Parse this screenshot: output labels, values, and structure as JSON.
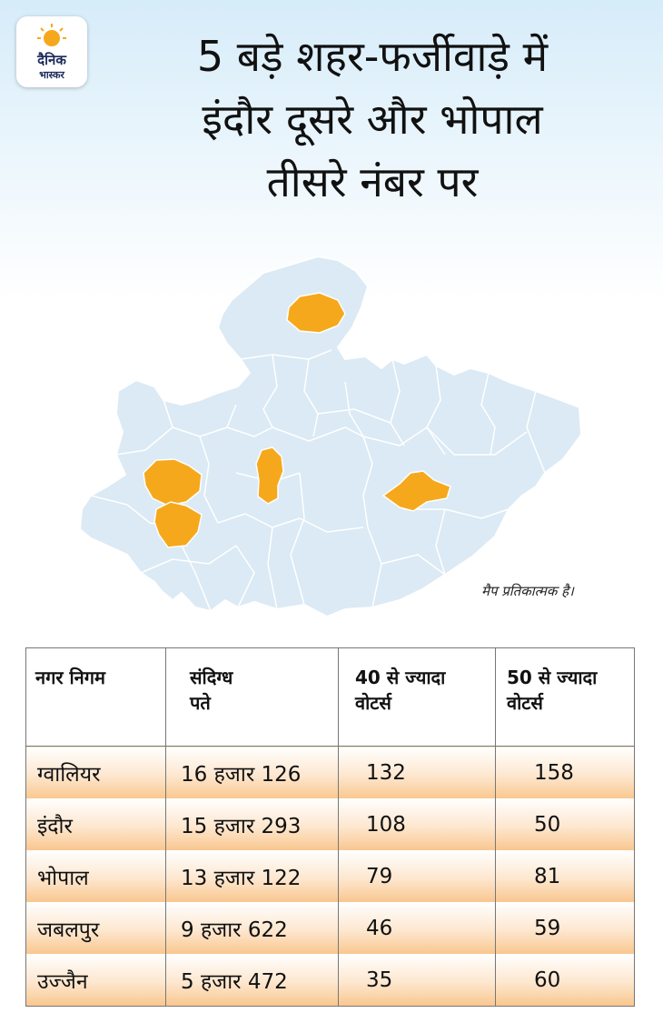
{
  "logo": {
    "line1": "दैनिक",
    "line2": "भास्कर"
  },
  "title": {
    "line1": "5 बड़े शहर-फर्जीवाड़े में",
    "line2": "इंदौर दूसरे और भोपाल",
    "line3": "तीसरे नंबर पर"
  },
  "map": {
    "note": "मैप प्रतिकात्मक है।",
    "base_color": "#dbeaf4",
    "highlight_color": "#f6a81c",
    "highlighted_regions": [
      "ग्वालियर",
      "इंदौर",
      "भोपाल",
      "जबलपुर",
      "उज्जैन"
    ]
  },
  "table": {
    "headers": [
      {
        "line1": "नगर निगम",
        "line2": ""
      },
      {
        "line1": "संदिग्ध",
        "line2": "पते"
      },
      {
        "line1": "40 से ज्यादा",
        "line2": "वोटर्स"
      },
      {
        "line1": "50 से ज्यादा",
        "line2": "वोटर्स"
      }
    ],
    "rows": [
      {
        "city": "ग्वालियर",
        "addresses": "16 हजार 126",
        "over40": "132",
        "over50": "158"
      },
      {
        "city": "इंदौर",
        "addresses": "15 हजार 293",
        "over40": "108",
        "over50": "50"
      },
      {
        "city": "भोपाल",
        "addresses": "13 हजार 122",
        "over40": "79",
        "over50": "81"
      },
      {
        "city": "जबलपुर",
        "addresses": "9 हजार 622",
        "over40": "46",
        "over50": "59"
      },
      {
        "city": "उज्जैन",
        "addresses": "5 हजार 472",
        "over40": "35",
        "over50": "60"
      }
    ]
  }
}
